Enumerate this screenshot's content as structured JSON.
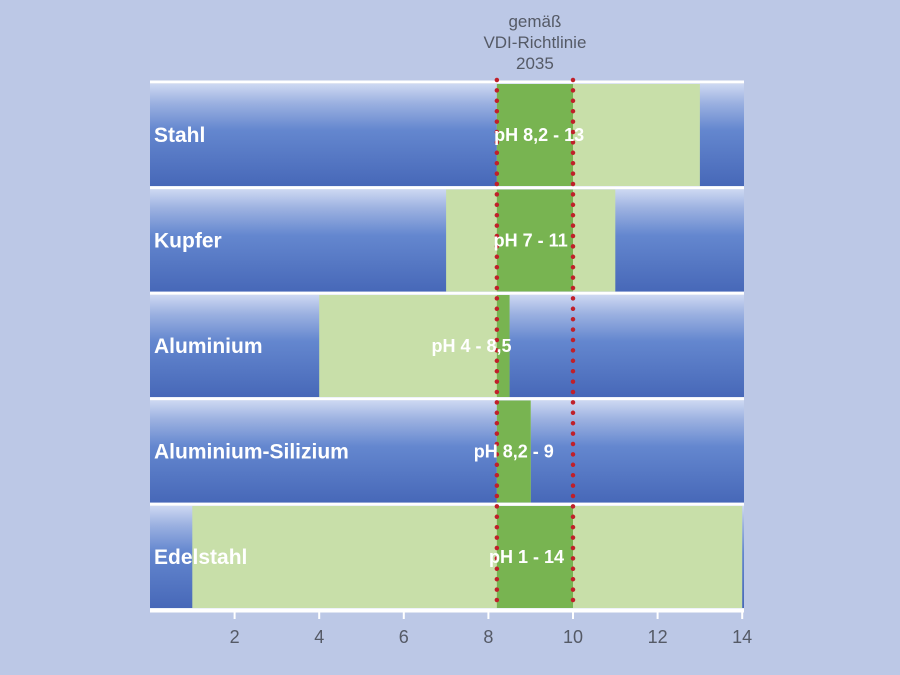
{
  "chart_data": {
    "type": "bar",
    "orientation": "horizontal-range",
    "xlim": [
      0,
      14
    ],
    "x_ticks": [
      2,
      4,
      6,
      8,
      10,
      12,
      14
    ],
    "reference_range": {
      "label_lines": [
        "gemäß",
        "VDI-Richtlinie",
        "2035"
      ],
      "from": 8.2,
      "to": 10
    },
    "categories": [
      "Stahl",
      "Kupfer",
      "Aluminium",
      "Aluminium-Silizium",
      "Edelstahl"
    ],
    "ranges": [
      {
        "material": "Stahl",
        "from": 8.2,
        "to": 13,
        "label": "pH 8,2 - 13"
      },
      {
        "material": "Kupfer",
        "from": 7,
        "to": 11,
        "label": "pH 7 - 11"
      },
      {
        "material": "Aluminium",
        "from": 4,
        "to": 8.5,
        "label": "pH 4 - 8,5"
      },
      {
        "material": "Aluminium-Silizium",
        "from": 8.2,
        "to": 9,
        "label": "pH 8,2 - 9"
      },
      {
        "material": "Edelstahl",
        "from": 1,
        "to": 14,
        "label": "pH 1 - 14"
      }
    ]
  },
  "colors": {
    "background": "#bcc8e6",
    "bar_blue_dark": "#4a6fbd",
    "bar_blue_light": "#c9d5f0",
    "range_light_green": "#c8dfa9",
    "range_dark_green": "#78b451",
    "reference_line": "#c0202a",
    "separator": "#ffffff"
  }
}
